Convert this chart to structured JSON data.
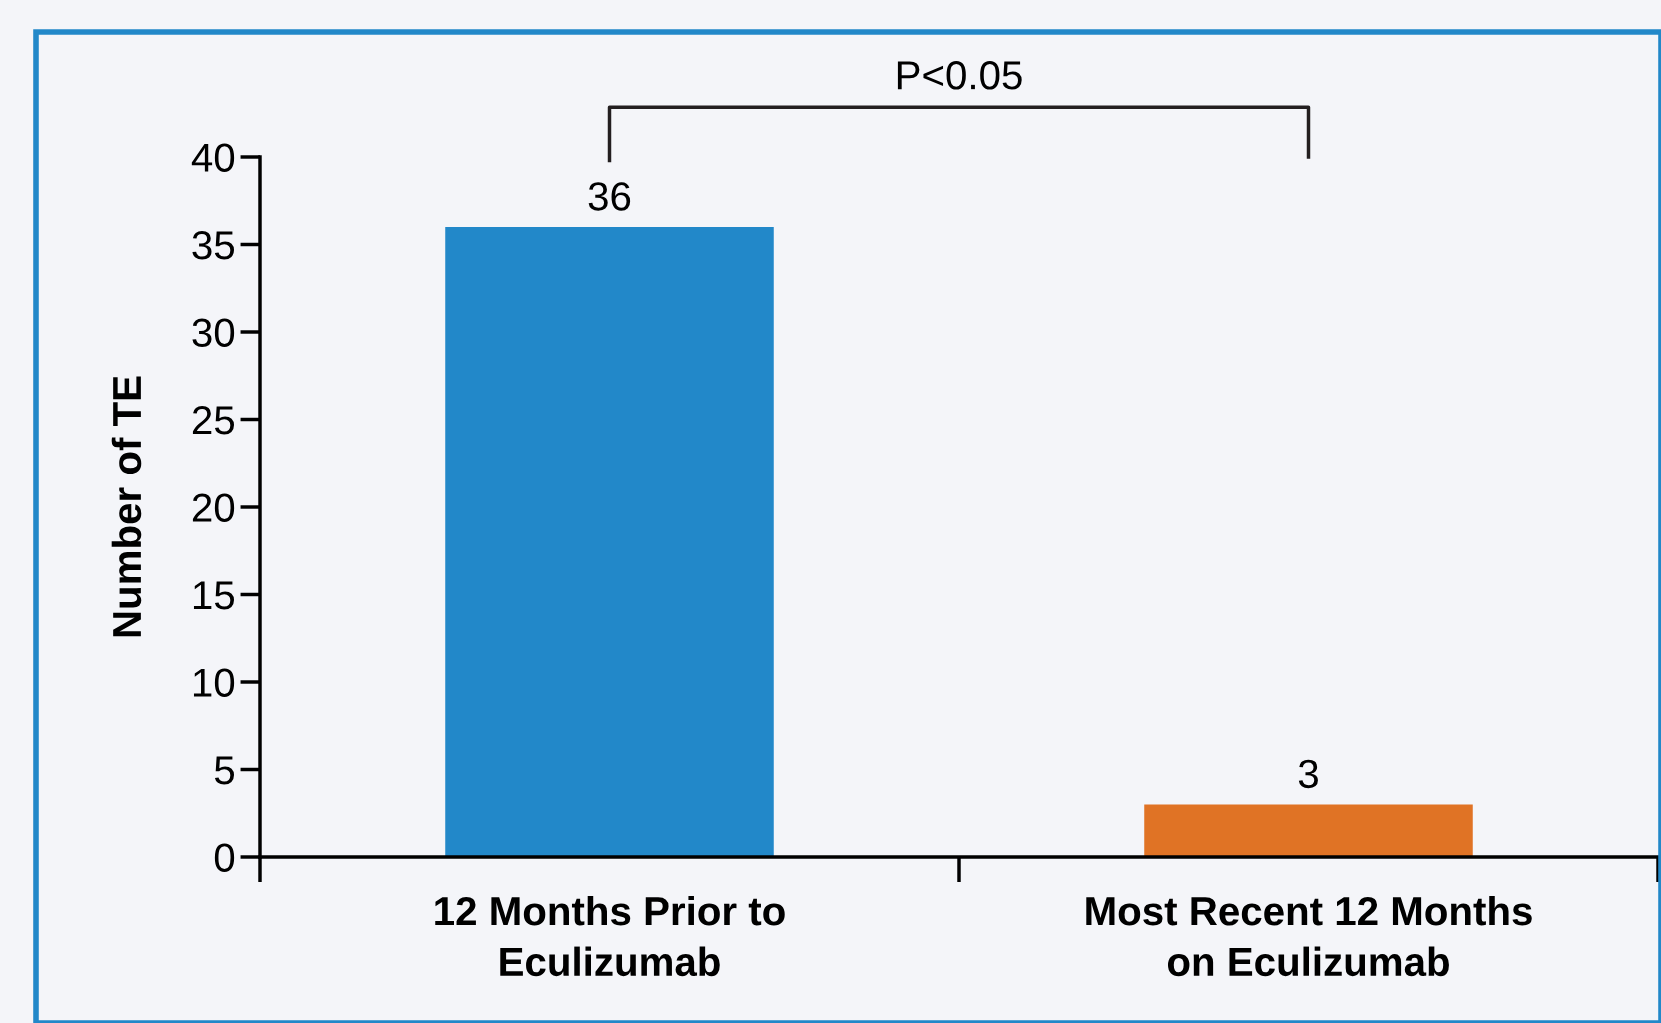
{
  "chart_data": {
    "type": "bar",
    "ylabel": "Number of TE",
    "categories": [
      "12 Months Prior to\nEculizumab",
      "Most Recent 12 Months\non Eculizumab"
    ],
    "values": [
      36,
      3
    ],
    "colors": [
      "#2288c9",
      "#e07325"
    ],
    "ylim": [
      0,
      40
    ],
    "yticks": [
      0,
      5,
      10,
      15,
      20,
      25,
      30,
      35,
      40
    ],
    "data_labels": true,
    "grid": false,
    "annotations": [
      "P<0.05"
    ]
  }
}
